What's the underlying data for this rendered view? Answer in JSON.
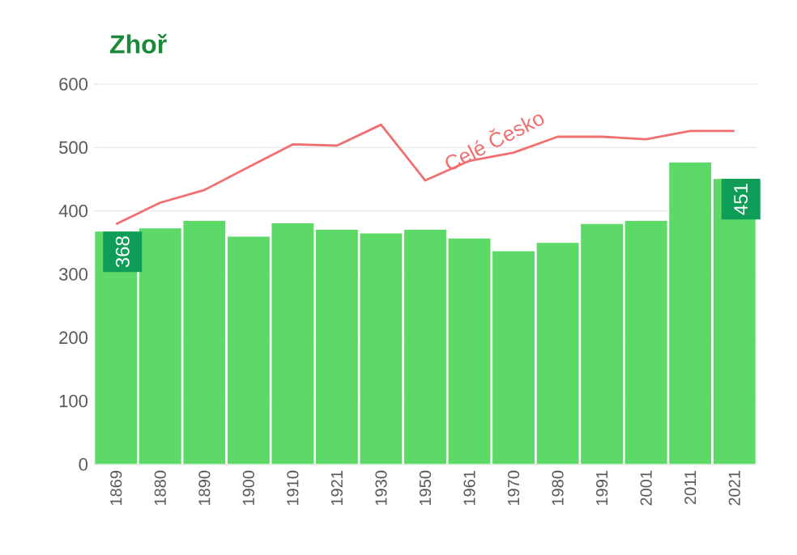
{
  "chart_data": {
    "type": "bar",
    "title": "Zhoř",
    "categories": [
      "1869",
      "1880",
      "1890",
      "1900",
      "1910",
      "1921",
      "1930",
      "1950",
      "1961",
      "1970",
      "1980",
      "1991",
      "2001",
      "2011",
      "2021"
    ],
    "series": [
      {
        "color": "#5cd966",
        "values": [
          368,
          373,
          385,
          360,
          381,
          371,
          365,
          371,
          357,
          337,
          350,
          380,
          385,
          477,
          451
        ],
        "value_labels": [
          "368",
          null,
          null,
          null,
          null,
          null,
          null,
          null,
          null,
          null,
          null,
          null,
          null,
          null,
          "451"
        ]
      },
      {
        "name": "Celé Česko",
        "type": "line",
        "color": "#f07070",
        "values": [
          379,
          413,
          433,
          469,
          505,
          503,
          536,
          448,
          479,
          492,
          517,
          517,
          513,
          526,
          526
        ]
      }
    ],
    "ylim": [
      0,
      600
    ],
    "yticks": [
      0,
      100,
      200,
      300,
      400,
      500,
      600
    ],
    "grid": "y"
  }
}
